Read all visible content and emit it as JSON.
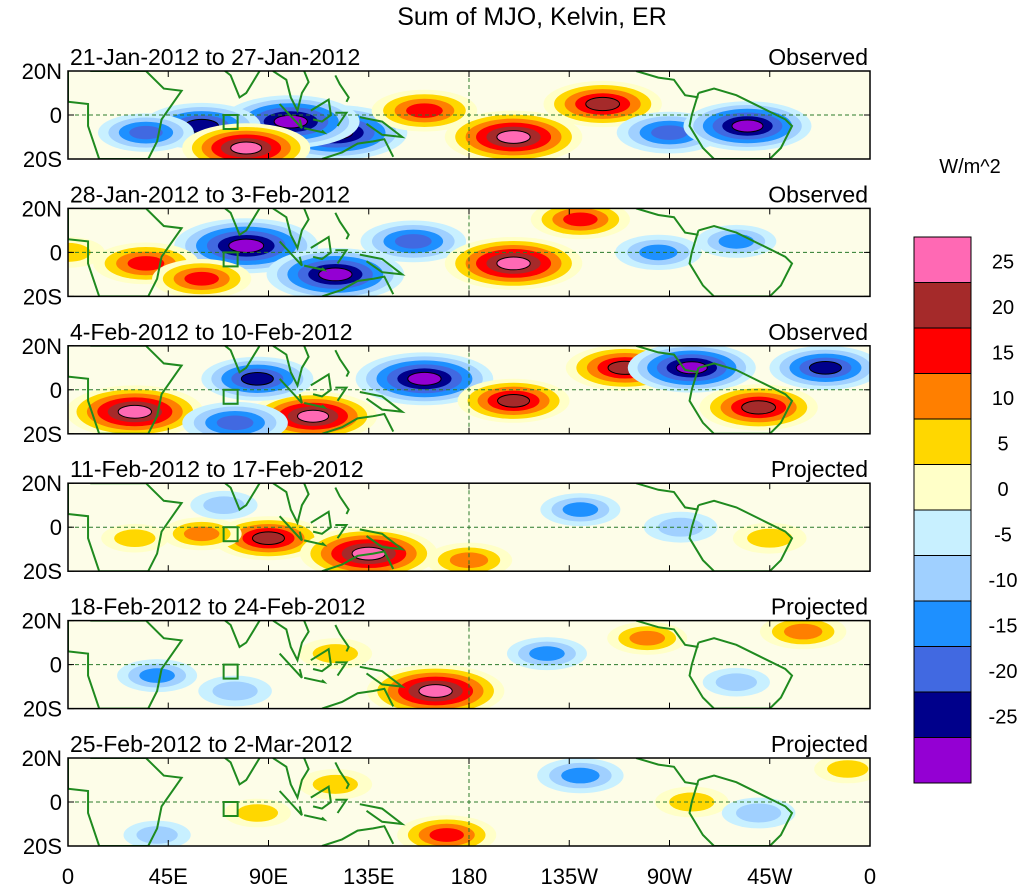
{
  "chart_data": {
    "type": "heatmap",
    "title": "Sum of MJO, Kelvin, ER",
    "longitude_ticks": [
      "0",
      "45E",
      "90E",
      "135E",
      "180",
      "135W",
      "90W",
      "45W",
      "0"
    ],
    "latitude_ticks": [
      "20N",
      "0",
      "20S"
    ],
    "colorbar": {
      "unit": "W/m^2",
      "labels": [
        "25",
        "20",
        "15",
        "10",
        "5",
        "0",
        "-5",
        "-10",
        "-15",
        "-20",
        "-25"
      ],
      "colors": [
        "#ff69b4",
        "#a52a2a",
        "#ff0000",
        "#ff7f00",
        "#ffd700",
        "#ffffc8",
        "#c8f0ff",
        "#a0d0ff",
        "#1e90ff",
        "#4169e1",
        "#00008b",
        "#9400d3"
      ]
    },
    "panels": [
      {
        "period": "21-Jan-2012 to 27-Jan-2012",
        "status": "Observed",
        "anomalies": [
          {
            "lon": 120,
            "lat": -8,
            "value": -30
          },
          {
            "lon": 100,
            "lat": -3,
            "value": -28
          },
          {
            "lon": 60,
            "lat": -5,
            "value": -22
          },
          {
            "lon": 35,
            "lat": -8,
            "value": -15
          },
          {
            "lon": 160,
            "lat": 2,
            "value": 18
          },
          {
            "lon": 200,
            "lat": -10,
            "value": 28
          },
          {
            "lon": 240,
            "lat": 5,
            "value": 22
          },
          {
            "lon": 270,
            "lat": -8,
            "value": -18
          },
          {
            "lon": 305,
            "lat": -5,
            "value": -25
          },
          {
            "lon": 80,
            "lat": -15,
            "value": 25
          }
        ]
      },
      {
        "period": "28-Jan-2012 to 3-Feb-2012",
        "status": "Observed",
        "anomalies": [
          {
            "lon": 80,
            "lat": 3,
            "value": -30
          },
          {
            "lon": 120,
            "lat": -10,
            "value": -28
          },
          {
            "lon": 155,
            "lat": 5,
            "value": -18
          },
          {
            "lon": 35,
            "lat": -5,
            "value": 18
          },
          {
            "lon": 60,
            "lat": -12,
            "value": 16
          },
          {
            "lon": 200,
            "lat": -5,
            "value": 28
          },
          {
            "lon": 230,
            "lat": 15,
            "value": 16
          },
          {
            "lon": 265,
            "lat": 0,
            "value": -12
          },
          {
            "lon": 300,
            "lat": 5,
            "value": -10
          },
          {
            "lon": 0,
            "lat": 0,
            "value": 8
          }
        ]
      },
      {
        "period": "4-Feb-2012 to 10-Feb-2012",
        "status": "Observed",
        "anomalies": [
          {
            "lon": 30,
            "lat": -10,
            "value": 28
          },
          {
            "lon": 110,
            "lat": -12,
            "value": 25
          },
          {
            "lon": 85,
            "lat": 5,
            "value": -20
          },
          {
            "lon": 160,
            "lat": 5,
            "value": -28
          },
          {
            "lon": 200,
            "lat": -5,
            "value": 20
          },
          {
            "lon": 250,
            "lat": 10,
            "value": 22
          },
          {
            "lon": 280,
            "lat": 10,
            "value": -25
          },
          {
            "lon": 310,
            "lat": -8,
            "value": 22
          },
          {
            "lon": 340,
            "lat": 10,
            "value": -20
          },
          {
            "lon": 75,
            "lat": -15,
            "value": -18
          }
        ]
      },
      {
        "period": "11-Feb-2012 to 17-Feb-2012",
        "status": "Projected",
        "anomalies": [
          {
            "lon": 90,
            "lat": -5,
            "value": 20
          },
          {
            "lon": 135,
            "lat": -12,
            "value": 28
          },
          {
            "lon": 60,
            "lat": -3,
            "value": 10
          },
          {
            "lon": 30,
            "lat": -5,
            "value": 6
          },
          {
            "lon": 180,
            "lat": -15,
            "value": 12
          },
          {
            "lon": 230,
            "lat": 8,
            "value": -10
          },
          {
            "lon": 275,
            "lat": 0,
            "value": -8
          },
          {
            "lon": 315,
            "lat": -5,
            "value": 8
          },
          {
            "lon": 70,
            "lat": 10,
            "value": -6
          }
        ]
      },
      {
        "period": "18-Feb-2012 to 24-Feb-2012",
        "status": "Projected",
        "anomalies": [
          {
            "lon": 165,
            "lat": -12,
            "value": 28
          },
          {
            "lon": 120,
            "lat": 5,
            "value": 8
          },
          {
            "lon": 40,
            "lat": -5,
            "value": -10
          },
          {
            "lon": 75,
            "lat": -12,
            "value": -8
          },
          {
            "lon": 215,
            "lat": 5,
            "value": -10
          },
          {
            "lon": 260,
            "lat": 12,
            "value": 10
          },
          {
            "lon": 330,
            "lat": 15,
            "value": 12
          },
          {
            "lon": 300,
            "lat": -8,
            "value": -6
          }
        ]
      },
      {
        "period": "25-Feb-2012 to 2-Mar-2012",
        "status": "Projected",
        "anomalies": [
          {
            "lon": 170,
            "lat": -15,
            "value": 16
          },
          {
            "lon": 120,
            "lat": 8,
            "value": 8
          },
          {
            "lon": 85,
            "lat": -5,
            "value": 6
          },
          {
            "lon": 230,
            "lat": 12,
            "value": -12
          },
          {
            "lon": 280,
            "lat": 0,
            "value": 8
          },
          {
            "lon": 310,
            "lat": -5,
            "value": -8
          },
          {
            "lon": 40,
            "lat": -15,
            "value": -6
          },
          {
            "lon": 350,
            "lat": 15,
            "value": 6
          }
        ]
      }
    ]
  }
}
